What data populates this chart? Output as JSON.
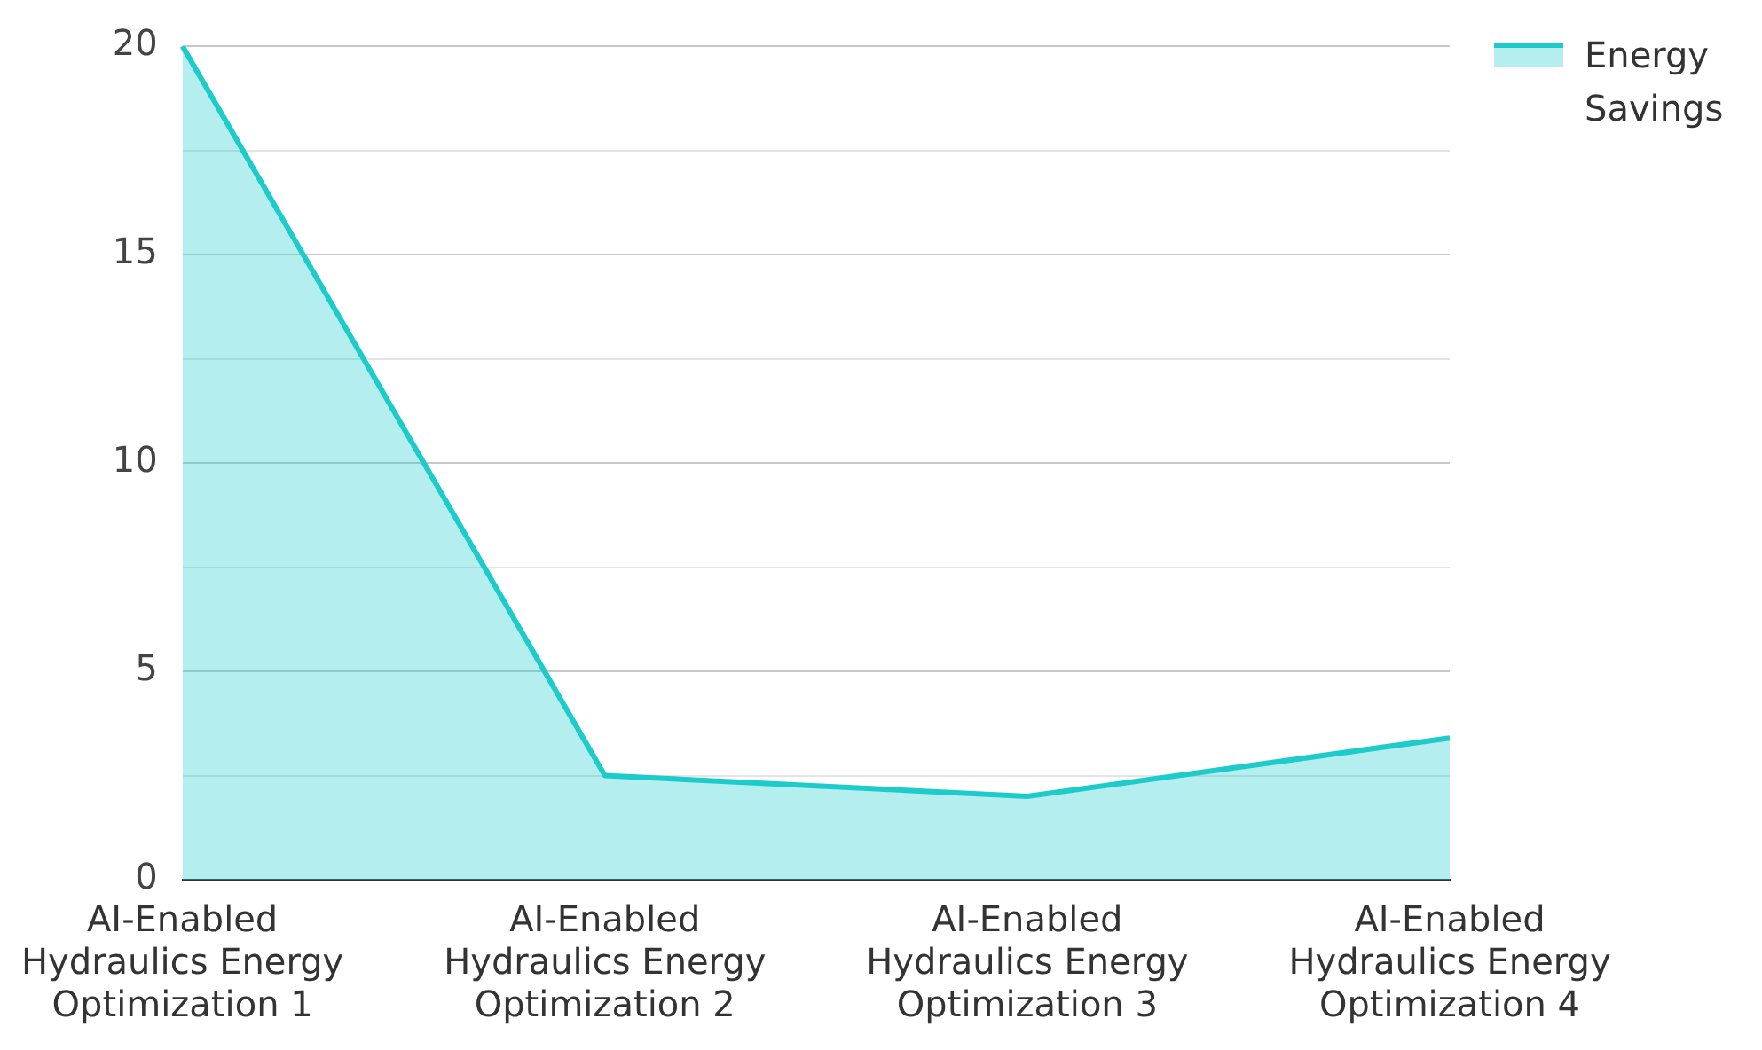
{
  "chart_data": {
    "type": "area",
    "categories": [
      "AI-Enabled Hydraulics Energy Optimization 1",
      "AI-Enabled Hydraulics Energy Optimization 2",
      "AI-Enabled Hydraulics Energy Optimization 3",
      "AI-Enabled Hydraulics Energy Optimization 4"
    ],
    "series": [
      {
        "name": "Energy Savings",
        "color": "#1ecbcb",
        "values": [
          20,
          2.5,
          2.0,
          3.4
        ]
      }
    ],
    "ylim": [
      0,
      20
    ],
    "yticks": [
      0,
      {
        "value": 2.5,
        "label": null
      },
      5,
      {
        "value": 7.5,
        "label": null
      },
      10,
      {
        "value": 12.5,
        "label": null
      },
      15,
      {
        "value": 17.5,
        "label": null
      },
      20
    ],
    "grid": "y",
    "legend": "top right",
    "marker": "none",
    "line_style": "solid"
  }
}
